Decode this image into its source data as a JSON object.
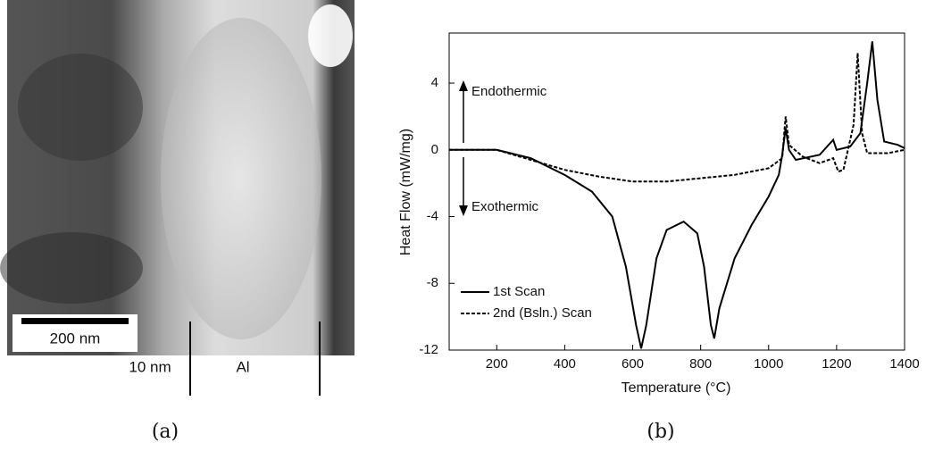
{
  "panel_a": {
    "scale_bar": "200 nm",
    "labels": [
      "10 nm",
      "Al"
    ],
    "caption": "(a)"
  },
  "chart_data": {
    "type": "line",
    "caption": "(b)",
    "x_label": "Temperature (°C)",
    "y_label": "Heat Flow (mW/mg)",
    "annotations": [
      "Endothermic",
      "Exothermic"
    ],
    "xlim": [
      60,
      1400
    ],
    "xticks": [
      200,
      400,
      600,
      800,
      1000,
      1200,
      1400
    ],
    "ylim": [
      -12,
      7
    ],
    "yticks": [
      -12,
      -8,
      -4,
      0,
      4
    ],
    "series": [
      {
        "name": "1st Scan",
        "color": "#000000",
        "dash": false,
        "x": [
          60,
          200,
          300,
          400,
          480,
          540,
          580,
          610,
          625,
          640,
          670,
          700,
          750,
          790,
          810,
          830,
          840,
          855,
          900,
          950,
          1000,
          1030,
          1040,
          1050,
          1060,
          1080,
          1150,
          1190,
          1200,
          1240,
          1270,
          1290,
          1305,
          1320,
          1340,
          1380,
          1400
        ],
        "values": [
          0,
          0,
          -0.5,
          -1.5,
          -2.5,
          -4,
          -7,
          -10.5,
          -11.9,
          -10.5,
          -6.5,
          -4.8,
          -4.3,
          -5,
          -7,
          -10.5,
          -11.3,
          -9.5,
          -6.5,
          -4.5,
          -2.8,
          -1.5,
          -0.3,
          1.3,
          0,
          -0.6,
          -0.3,
          0.6,
          0,
          0.2,
          1,
          4,
          6.5,
          3,
          0.5,
          0.3,
          0.1
        ]
      },
      {
        "name": "2nd (Bsln.) Scan",
        "color": "#000000",
        "dash": true,
        "x": [
          60,
          200,
          300,
          400,
          500,
          600,
          700,
          800,
          900,
          1000,
          1040,
          1050,
          1060,
          1100,
          1150,
          1190,
          1205,
          1220,
          1250,
          1262,
          1275,
          1290,
          1350,
          1400
        ],
        "values": [
          0,
          0,
          -0.6,
          -1.2,
          -1.6,
          -1.9,
          -1.9,
          -1.7,
          -1.5,
          -1.1,
          -0.5,
          2,
          0.3,
          -0.4,
          -0.8,
          -0.5,
          -1.3,
          -1.2,
          1.5,
          5.8,
          1,
          -0.2,
          -0.2,
          0
        ]
      }
    ]
  }
}
